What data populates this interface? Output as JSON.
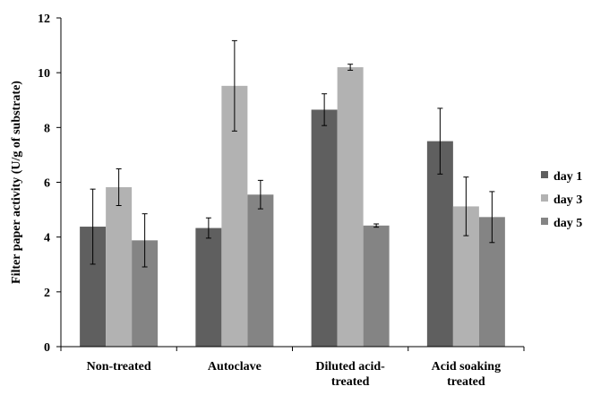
{
  "chart_data": {
    "type": "bar",
    "title": "",
    "xlabel": "",
    "ylabel": "Filter paper activity (U/g of substrate)",
    "ylim": [
      0,
      12
    ],
    "yticks": [
      0,
      2,
      4,
      6,
      8,
      10,
      12
    ],
    "grid": false,
    "legend_position": "right",
    "categories": [
      [
        "Non-treated"
      ],
      [
        "Autoclave"
      ],
      [
        "Diluted acid-",
        "treated"
      ],
      [
        "Acid soaking",
        "treated"
      ]
    ],
    "series": [
      {
        "name": "day 1",
        "color": "#5f5f5f",
        "values": [
          4.38,
          4.33,
          8.65,
          7.5
        ],
        "errors": [
          1.37,
          0.37,
          0.58,
          1.2
        ]
      },
      {
        "name": "day 3",
        "color": "#b2b2b2",
        "values": [
          5.82,
          9.52,
          10.2,
          5.12
        ],
        "errors": [
          0.67,
          1.65,
          0.11,
          1.07
        ]
      },
      {
        "name": "day 5",
        "color": "#848484",
        "values": [
          3.88,
          5.55,
          4.42,
          4.73
        ],
        "errors": [
          0.97,
          0.52,
          0.06,
          0.93
        ]
      }
    ]
  }
}
